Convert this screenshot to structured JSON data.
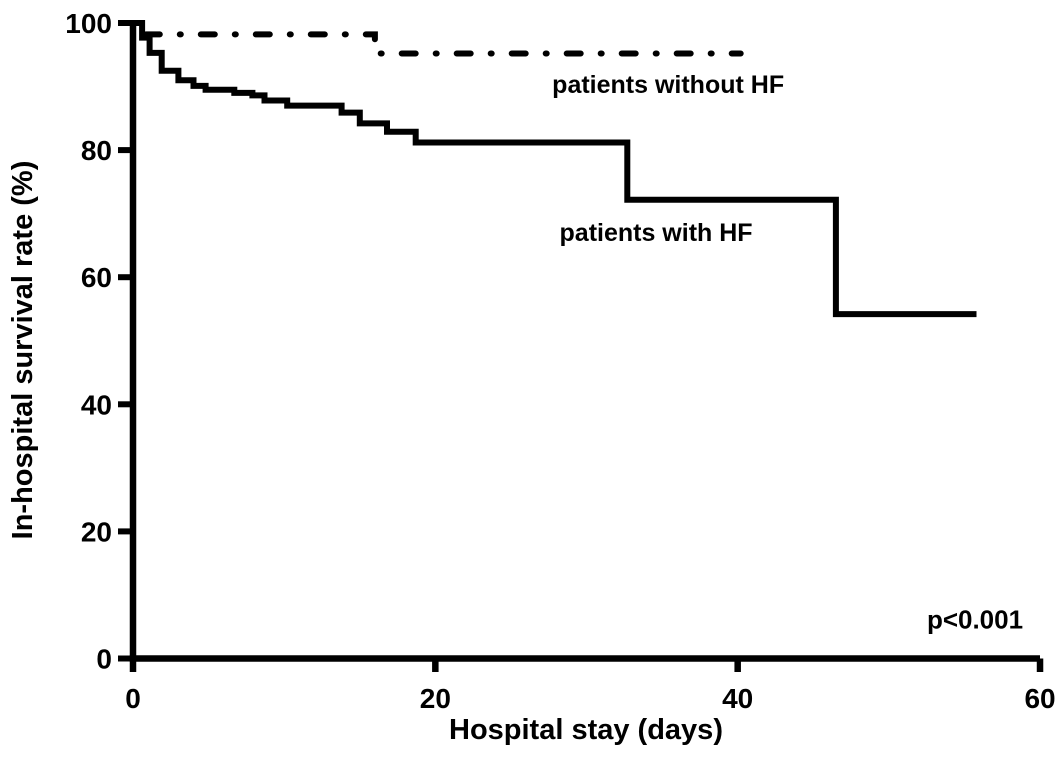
{
  "figure": {
    "background_color": "#ffffff",
    "ink_color": "#000000"
  },
  "chart_data": {
    "type": "line",
    "subtype": "kaplan-meier-step",
    "title": "",
    "xlabel": "Hospital stay (days)",
    "ylabel": "In-hospital survival rate (%)",
    "xlim": [
      0,
      60
    ],
    "ylim": [
      0,
      100
    ],
    "xticks": [
      0,
      20,
      40,
      60
    ],
    "yticks": [
      0,
      20,
      40,
      60,
      80,
      100
    ],
    "grid": false,
    "legend_position": "inline-annotations",
    "annotations": [
      {
        "id": "label-without-hf",
        "text": "patients without HF",
        "x": 35.4,
        "y": 90.4
      },
      {
        "id": "label-with-hf",
        "text": "patients with HF",
        "x": 34.6,
        "y": 67.1
      },
      {
        "id": "p-value",
        "text": "p<0.001",
        "x": 55.7,
        "y": 6.1
      }
    ],
    "series": [
      {
        "name": "patients without HF",
        "line_style": "dash-dot",
        "line_color": "#000000",
        "end_day": 40.2,
        "points": [
          [
            0.85,
            98.2
          ],
          [
            16.0,
            95.2
          ]
        ]
      },
      {
        "name": "patients with HF",
        "line_style": "solid",
        "line_color": "#000000",
        "end_day": 55.8,
        "points": [
          [
            0.0,
            100.0
          ],
          [
            0.6,
            97.7
          ],
          [
            1.1,
            95.3
          ],
          [
            1.9,
            92.5
          ],
          [
            3.0,
            91.0
          ],
          [
            4.0,
            90.1
          ],
          [
            4.8,
            89.5
          ],
          [
            6.7,
            89.0
          ],
          [
            7.9,
            88.6
          ],
          [
            8.7,
            87.8
          ],
          [
            10.2,
            87.0
          ],
          [
            13.8,
            85.9
          ],
          [
            15.0,
            84.2
          ],
          [
            16.8,
            82.9
          ],
          [
            18.7,
            81.2
          ],
          [
            32.7,
            72.2
          ],
          [
            46.5,
            54.2
          ]
        ]
      }
    ]
  }
}
